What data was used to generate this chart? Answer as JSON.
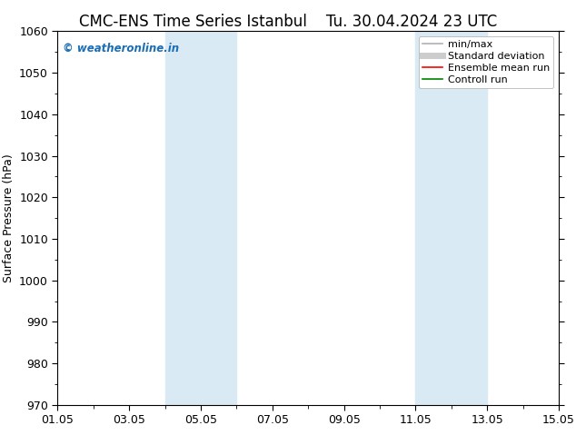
{
  "title_left": "CMC-ENS Time Series Istanbul",
  "title_right": "Tu. 30.04.2024 23 UTC",
  "ylabel": "Surface Pressure (hPa)",
  "ylim": [
    970,
    1060
  ],
  "yticks": [
    970,
    980,
    990,
    1000,
    1010,
    1020,
    1030,
    1040,
    1050,
    1060
  ],
  "xlim": [
    0,
    14
  ],
  "xtick_labels": [
    "01.05",
    "03.05",
    "05.05",
    "07.05",
    "09.05",
    "11.05",
    "13.05",
    "15.05"
  ],
  "xtick_positions": [
    0,
    2,
    4,
    6,
    8,
    10,
    12,
    14
  ],
  "shade_bands": [
    {
      "x_start": 3.0,
      "x_end": 4.0,
      "color": "#daeaf5"
    },
    {
      "x_start": 4.0,
      "x_end": 5.0,
      "color": "#daeaf5"
    },
    {
      "x_start": 10.0,
      "x_end": 11.0,
      "color": "#daeaf5"
    },
    {
      "x_start": 11.0,
      "x_end": 12.0,
      "color": "#daeaf5"
    }
  ],
  "legend_entries": [
    {
      "label": "min/max",
      "color": "#b0b0b0",
      "lw": 1.2
    },
    {
      "label": "Standard deviation",
      "color": "#cccccc",
      "lw": 5
    },
    {
      "label": "Ensemble mean run",
      "color": "red",
      "lw": 1.2
    },
    {
      "label": "Controll run",
      "color": "green",
      "lw": 1.2
    }
  ],
  "watermark": "© weatheronline.in",
  "watermark_color": "#1a6eb5",
  "background_color": "#ffffff",
  "plot_bg_color": "#ffffff",
  "title_fontsize": 12,
  "axis_label_fontsize": 9,
  "tick_fontsize": 9,
  "legend_fontsize": 8
}
